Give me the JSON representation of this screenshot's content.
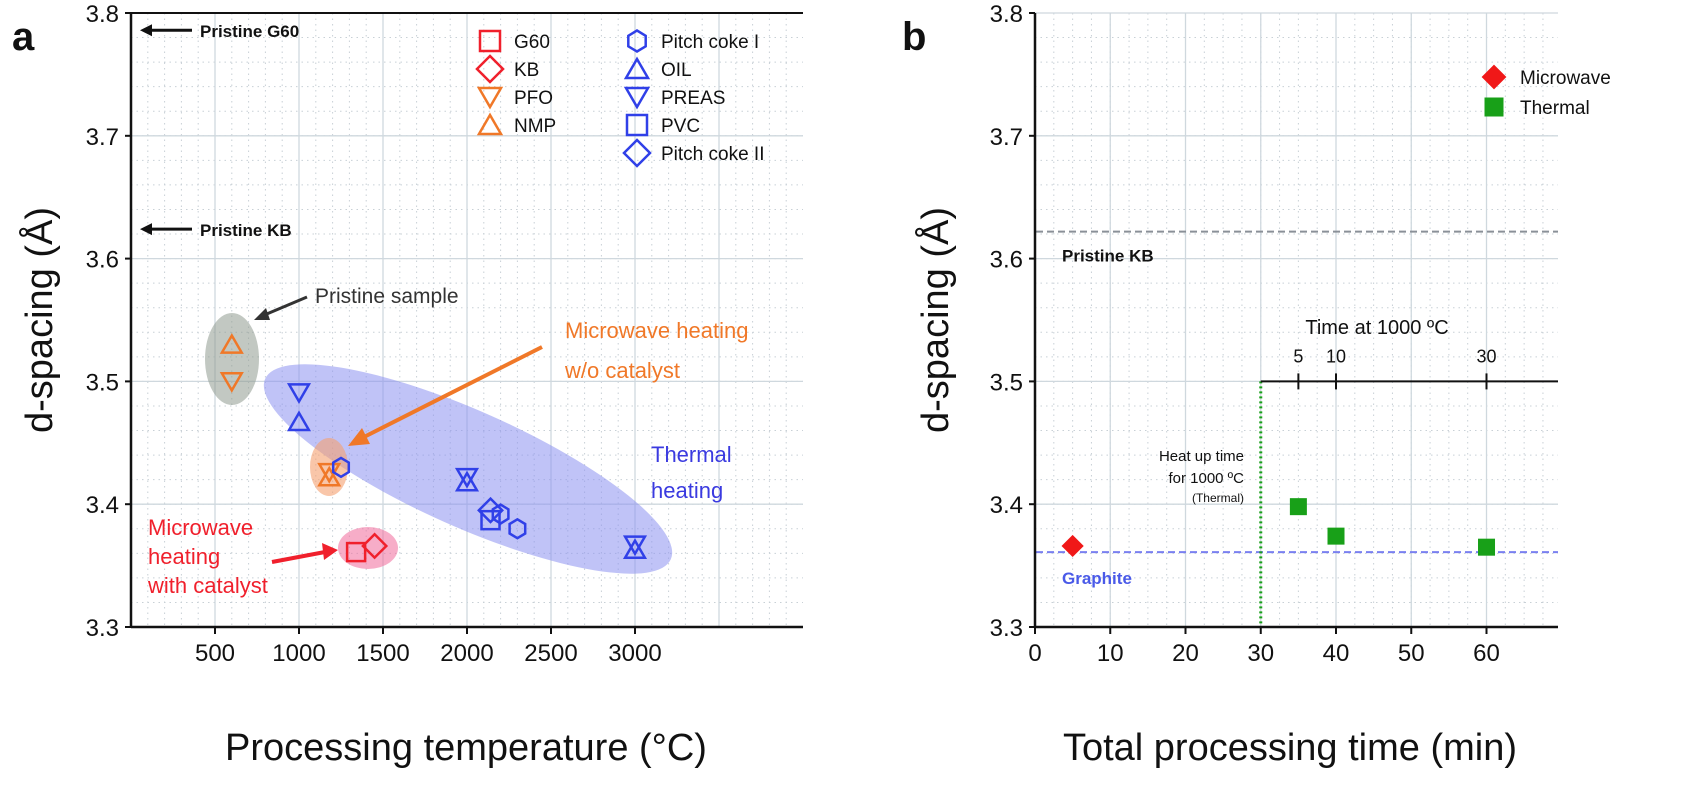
{
  "chart_data": [
    {
      "panel_label": "a",
      "type": "scatter",
      "xlabel": "Processing temperature (°C)",
      "ylabel": "d-spacing (Å)",
      "xlim": [
        0,
        4000
      ],
      "ylim": [
        3.3,
        3.8
      ],
      "xticks": [
        500,
        1000,
        1500,
        2000,
        2500,
        3000
      ],
      "yticks": [
        3.3,
        3.4,
        3.5,
        3.6,
        3.7,
        3.8
      ],
      "grid": true,
      "legend_position": "top-right",
      "series": [
        {
          "name": "G60",
          "marker": "square",
          "color": "#f0202c",
          "points": [
            [
              1340,
              3.361
            ]
          ]
        },
        {
          "name": "KB",
          "marker": "diamond",
          "color": "#f0202c",
          "points": [
            [
              1450,
              3.366
            ]
          ]
        },
        {
          "name": "PFO",
          "marker": "triangle-down",
          "color": "#f07828",
          "points": [
            [
              600,
              3.5
            ],
            [
              1180,
              3.426
            ]
          ]
        },
        {
          "name": "NMP",
          "marker": "triangle-up",
          "color": "#f07828",
          "points": [
            [
              600,
              3.53
            ],
            [
              1180,
              3.422
            ]
          ]
        },
        {
          "name": "Pitch coke I",
          "marker": "hexagon",
          "color": "#3040e8",
          "points": [
            [
              1250,
              3.43
            ],
            [
              2200,
              3.392
            ],
            [
              2300,
              3.38
            ]
          ]
        },
        {
          "name": "OIL",
          "marker": "triangle-up",
          "color": "#3040e8",
          "points": [
            [
              1000,
              3.467
            ],
            [
              2000,
              3.418
            ],
            [
              3000,
              3.363
            ]
          ]
        },
        {
          "name": "PREAS",
          "marker": "triangle-down",
          "color": "#3040e8",
          "points": [
            [
              1000,
              3.491
            ],
            [
              2000,
              3.422
            ],
            [
              3000,
              3.367
            ]
          ]
        },
        {
          "name": "PVC",
          "marker": "square",
          "color": "#3040e8",
          "points": [
            [
              2140,
              3.387
            ]
          ]
        },
        {
          "name": "Pitch coke II",
          "marker": "diamond",
          "color": "#3040e8",
          "points": [
            [
              2140,
              3.395
            ]
          ]
        }
      ],
      "reference_lines": [
        {
          "label": "Pristine G60",
          "y": 3.786
        },
        {
          "label": "Pristine KB",
          "y": 3.624
        }
      ],
      "annotations": {
        "pristine_sample": "Pristine sample",
        "mw_no_cat_1": "Microwave heating",
        "mw_no_cat_2": "w/o catalyst",
        "thermal_1": "Thermal",
        "thermal_2": "heating",
        "mw_cat_1": "Microwave",
        "mw_cat_2": "heating",
        "mw_cat_3": "with catalyst"
      },
      "colors": {
        "red": "#f0202c",
        "orange": "#f07828",
        "blue": "#3040e8",
        "gray_region": "#8f9a90",
        "blue_region": "#8c92f0",
        "orange_region": "#f5b080",
        "pink_region": "#f080a8"
      }
    },
    {
      "panel_label": "b",
      "type": "scatter",
      "xlabel": "Total processing time (min)",
      "ylabel": "d-spacing (Å)",
      "xlim": [
        0,
        69.5
      ],
      "ylim": [
        3.3,
        3.8
      ],
      "xticks": [
        0,
        10,
        20,
        30,
        40,
        50,
        60
      ],
      "yticks": [
        3.3,
        3.4,
        3.5,
        3.6,
        3.7,
        3.8
      ],
      "grid": true,
      "legend_position": "top-right",
      "series": [
        {
          "name": "Microwave",
          "marker": "diamond-filled",
          "color": "#f01818",
          "points": [
            [
              5,
              3.366
            ]
          ]
        },
        {
          "name": "Thermal",
          "marker": "square-filled",
          "color": "#18a018",
          "points": [
            [
              35,
              3.398
            ],
            [
              40,
              3.374
            ],
            [
              60,
              3.365
            ]
          ]
        }
      ],
      "reference_lines": [
        {
          "label": "Pristine KB",
          "y": 3.622,
          "color": "#8a9098"
        },
        {
          "label": "Graphite",
          "y": 3.361,
          "color": "#7a80f0"
        }
      ],
      "heatup_line": {
        "x": 30,
        "color": "#18a018",
        "label_1": "Heat up time",
        "label_2": "for 1000 ºC",
        "label_3": "(Thermal)"
      },
      "secondary_axis": {
        "title": "Time at 1000 ºC",
        "at_y": 3.5,
        "from_x": 30,
        "ticks": [
          {
            "label": "5",
            "x": 35
          },
          {
            "label": "10",
            "x": 40
          },
          {
            "label": "30",
            "x": 60
          }
        ]
      }
    }
  ]
}
